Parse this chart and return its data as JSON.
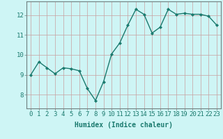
{
  "x": [
    0,
    1,
    2,
    3,
    4,
    5,
    6,
    7,
    8,
    9,
    10,
    11,
    12,
    13,
    14,
    15,
    16,
    17,
    18,
    19,
    20,
    21,
    22,
    23
  ],
  "y": [
    9.0,
    9.65,
    9.35,
    9.05,
    9.35,
    9.3,
    9.2,
    8.3,
    7.7,
    8.65,
    10.05,
    10.6,
    11.5,
    12.3,
    12.05,
    11.1,
    11.4,
    12.3,
    12.05,
    12.1,
    12.05,
    12.05,
    11.95,
    11.5
  ],
  "line_color": "#1a7a6e",
  "marker": "D",
  "marker_size": 2.2,
  "line_width": 1.0,
  "bg_color": "#cef5f5",
  "grid_color": "#c8a0a0",
  "xlabel": "Humidex (Indice chaleur)",
  "xlabel_fontsize": 7,
  "ylabel_ticks": [
    8,
    9,
    10,
    11,
    12
  ],
  "xlim": [
    -0.5,
    23.5
  ],
  "ylim": [
    7.3,
    12.7
  ],
  "tick_fontsize": 6.5,
  "spine_color": "#708080"
}
